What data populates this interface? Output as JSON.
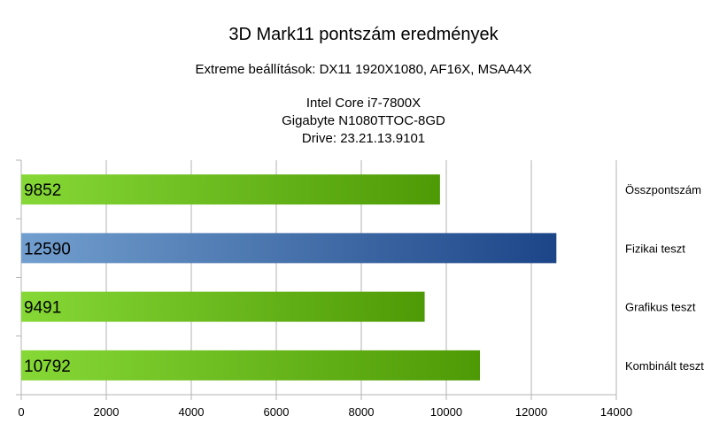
{
  "title": "3D Mark11 pontszám eredmények",
  "subtitle": "Extreme beállítások: DX11 1920X1080, AF16X, MSAA4X",
  "system_lines": [
    "Intel Core i7-7800X",
    "Gigabyte N1080TTOC-8GD",
    "Drive: 23.21.13.9101"
  ],
  "colors": {
    "green_light": "#86d836",
    "green_dark": "#4e9a06",
    "blue_light": "#729fcf",
    "blue_dark": "#1c4588",
    "grid": "#b3b3b3"
  },
  "chart_data": {
    "type": "bar",
    "orientation": "horizontal",
    "categories": [
      "Összpontszám",
      "Fizikai teszt",
      "Grafikus teszt",
      "Kombinált teszt"
    ],
    "values": [
      9852,
      12590,
      9491,
      10792
    ],
    "highlight": [
      "green",
      "blue",
      "green",
      "green"
    ],
    "xlim": [
      0,
      14000
    ],
    "xticks": [
      0,
      2000,
      4000,
      6000,
      8000,
      10000,
      12000,
      14000
    ],
    "grid": true,
    "data_labels": true,
    "category_labels_position": "right"
  }
}
